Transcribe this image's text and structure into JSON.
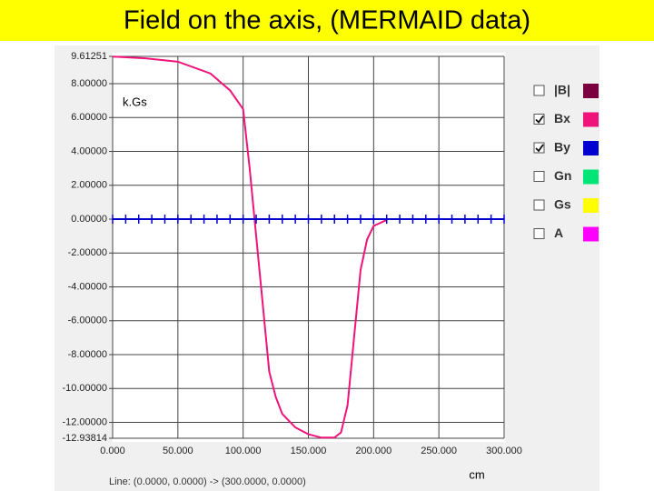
{
  "chart_data": {
    "type": "line",
    "title": "Field on the axis, (MERMAID data)",
    "y_unit": "k.Gs",
    "x_unit": "cm",
    "status": "Line: (0.0000, 0.0000) -> (300.0000, 0.0000)",
    "xlim": [
      0,
      300
    ],
    "ylim": [
      -12.93814,
      9.61251
    ],
    "grid": true,
    "xticks": [
      {
        "value": 0,
        "label": "0.000"
      },
      {
        "value": 50,
        "label": "50.000"
      },
      {
        "value": 100,
        "label": "100.000"
      },
      {
        "value": 150,
        "label": "150.000"
      },
      {
        "value": 200,
        "label": "200.000"
      },
      {
        "value": 250,
        "label": "250.000"
      },
      {
        "value": 300,
        "label": "300.000"
      }
    ],
    "yticks": [
      {
        "value": 9.61251,
        "label": "9.61251"
      },
      {
        "value": 8,
        "label": "8.00000"
      },
      {
        "value": 6,
        "label": "6.00000"
      },
      {
        "value": 4,
        "label": "4.00000"
      },
      {
        "value": 2,
        "label": "2.00000"
      },
      {
        "value": 0,
        "label": "0.00000"
      },
      {
        "value": -2,
        "label": "-2.00000"
      },
      {
        "value": -4,
        "label": "-4.00000"
      },
      {
        "value": -6,
        "label": "-6.00000"
      },
      {
        "value": -8,
        "label": "-8.00000"
      },
      {
        "value": -10,
        "label": "-10.00000"
      },
      {
        "value": -12,
        "label": "-12.00000"
      },
      {
        "value": -12.93814,
        "label": "-12.93814"
      }
    ],
    "series": [
      {
        "name": "|B|",
        "color": "#7a0040",
        "visible": false
      },
      {
        "name": "Bx",
        "color": "#f0147a",
        "visible": true,
        "x": [
          0,
          25,
          50,
          75,
          90,
          100,
          105,
          110,
          115,
          120,
          125,
          130,
          140,
          150,
          160,
          170,
          175,
          180,
          185,
          190,
          195,
          200,
          210
        ],
        "values": [
          9.6,
          9.5,
          9.3,
          8.6,
          7.6,
          6.5,
          3,
          -1,
          -5,
          -9,
          -10.5,
          -11.5,
          -12.3,
          -12.7,
          -12.9,
          -12.9,
          -12.6,
          -11,
          -7,
          -3,
          -1.2,
          -0.4,
          -0.05
        ]
      },
      {
        "name": "By",
        "color": "#0000d0",
        "visible": true,
        "x": [
          0,
          10,
          20,
          30,
          40,
          50,
          60,
          70,
          80,
          90,
          100,
          110,
          120,
          130,
          140,
          150,
          160,
          170,
          180,
          190,
          200,
          210,
          220,
          230,
          240,
          250,
          260,
          270,
          280,
          290,
          300
        ],
        "values": [
          0,
          0,
          0,
          0,
          0,
          0,
          0,
          0,
          0,
          0,
          0,
          0,
          0,
          0,
          0,
          0,
          0,
          0,
          0,
          0,
          0,
          0,
          0,
          0,
          0,
          0,
          0,
          0,
          0,
          0,
          0
        ]
      },
      {
        "name": "Gn",
        "color": "#00e676",
        "visible": false
      },
      {
        "name": "Gs",
        "color": "#ffff00",
        "visible": false
      },
      {
        "name": "A",
        "color": "#ff00ff",
        "visible": false
      }
    ]
  }
}
